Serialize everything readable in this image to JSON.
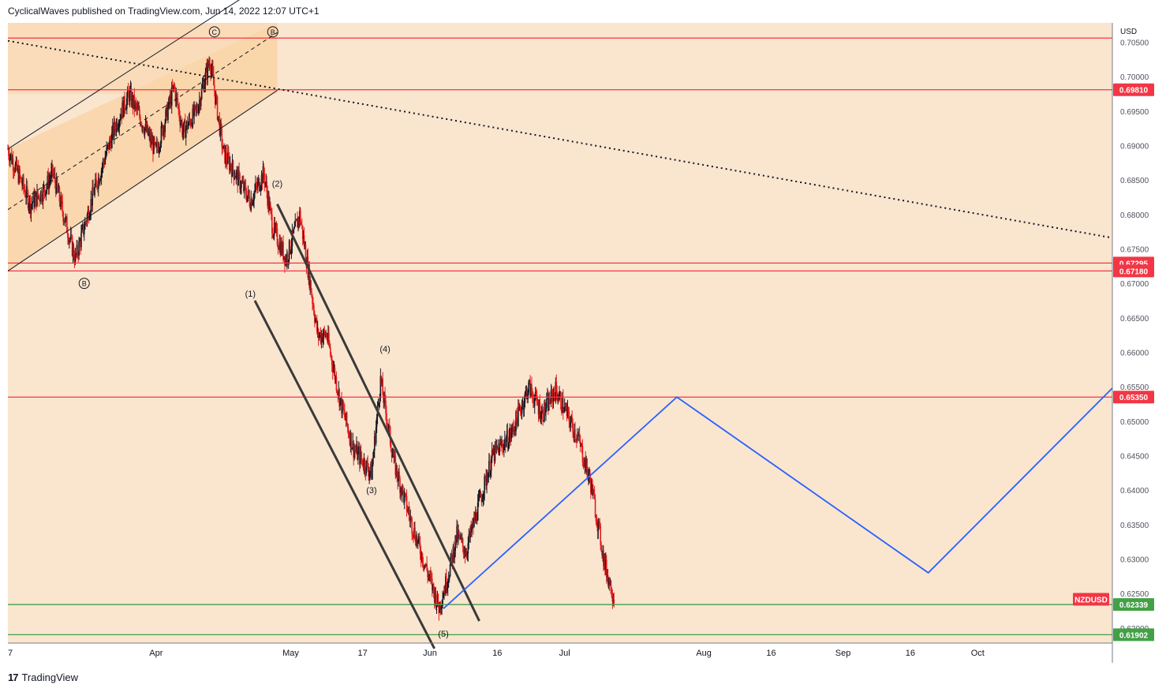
{
  "header": {
    "text": "CyclicalWaves published on TradingView.com, Jun 14, 2022 12:07 UTC+1"
  },
  "footer": {
    "logo_glyph": "17",
    "brand": "TradingView"
  },
  "colors": {
    "background": "#fae5cf",
    "channel_fill": "#fad5aa",
    "bull_candle": "#131722",
    "bear_candle": "#e31c1c",
    "resistance_line": "#f23645",
    "support_line": "#43a047",
    "projection_line": "#2962ff",
    "impulse_channel": "#3a3a3a",
    "symbol_tag": "#f23645"
  },
  "chart_data": {
    "type": "candlestick",
    "symbol": "NZDUSD",
    "currency": "USD",
    "ylim": [
      0.6178,
      0.7078
    ],
    "x_axis": {
      "date_range": [
        "2022-02-27",
        "2022-10-31"
      ],
      "ticks": [
        {
          "label": "7",
          "date": "2022-02-27"
        },
        {
          "label": "Apr",
          "date": "2022-04-01"
        },
        {
          "label": "May",
          "date": "2022-05-01"
        },
        {
          "label": "17",
          "date": "2022-05-17"
        },
        {
          "label": "Jun",
          "date": "2022-06-01"
        },
        {
          "label": "16",
          "date": "2022-06-16"
        },
        {
          "label": "Jul",
          "date": "2022-07-01"
        },
        {
          "label": "Aug",
          "date": "2022-08-01"
        },
        {
          "label": "16",
          "date": "2022-08-16"
        },
        {
          "label": "Sep",
          "date": "2022-09-01"
        },
        {
          "label": "16",
          "date": "2022-09-16"
        },
        {
          "label": "Oct",
          "date": "2022-10-01"
        }
      ]
    },
    "y_ticks": [
      "0.70500",
      "0.70000",
      "0.69500",
      "0.69000",
      "0.68500",
      "0.68000",
      "0.67500",
      "0.67000",
      "0.66500",
      "0.66000",
      "0.65500",
      "0.65000",
      "0.64500",
      "0.64000",
      "0.63500",
      "0.63000",
      "0.62500",
      "0.62000"
    ],
    "price_path": [
      {
        "date": "2022-02-27",
        "price": 0.6895
      },
      {
        "date": "2022-03-04",
        "price": 0.6815
      },
      {
        "date": "2022-03-07",
        "price": 0.6835
      },
      {
        "date": "2022-03-09",
        "price": 0.686
      },
      {
        "date": "2022-03-14",
        "price": 0.6735
      },
      {
        "date": "2022-03-18",
        "price": 0.683
      },
      {
        "date": "2022-03-23",
        "price": 0.693
      },
      {
        "date": "2022-03-26",
        "price": 0.6975
      },
      {
        "date": "2022-04-01",
        "price": 0.689
      },
      {
        "date": "2022-04-05",
        "price": 0.6985
      },
      {
        "date": "2022-04-07",
        "price": 0.692
      },
      {
        "date": "2022-04-10",
        "price": 0.695
      },
      {
        "date": "2022-04-13",
        "price": 0.7025
      },
      {
        "date": "2022-04-16",
        "price": 0.689
      },
      {
        "date": "2022-04-22",
        "price": 0.682
      },
      {
        "date": "2022-04-25",
        "price": 0.686
      },
      {
        "date": "2022-04-27",
        "price": 0.678
      },
      {
        "date": "2022-04-30",
        "price": 0.6735
      },
      {
        "date": "2022-05-03",
        "price": 0.68
      },
      {
        "date": "2022-05-05",
        "price": 0.6715
      },
      {
        "date": "2022-05-07",
        "price": 0.6625
      },
      {
        "date": "2022-05-09",
        "price": 0.6625
      },
      {
        "date": "2022-05-12",
        "price": 0.653
      },
      {
        "date": "2022-05-15",
        "price": 0.646
      },
      {
        "date": "2022-05-19",
        "price": 0.6425
      },
      {
        "date": "2022-05-21",
        "price": 0.656
      },
      {
        "date": "2022-05-24",
        "price": 0.644
      },
      {
        "date": "2022-05-28",
        "price": 0.635
      },
      {
        "date": "2022-05-31",
        "price": 0.629
      },
      {
        "date": "2022-06-03",
        "price": 0.623
      },
      {
        "date": "2022-06-05",
        "price": 0.6275
      },
      {
        "date": "2022-06-07",
        "price": 0.6335
      },
      {
        "date": "2022-06-09",
        "price": 0.631
      },
      {
        "date": "2022-06-13",
        "price": 0.6405
      },
      {
        "date": "2022-06-15",
        "price": 0.645
      },
      {
        "date": "2022-06-19",
        "price": 0.648
      },
      {
        "date": "2022-06-23",
        "price": 0.655
      },
      {
        "date": "2022-06-26",
        "price": 0.651
      },
      {
        "date": "2022-06-29",
        "price": 0.6545
      },
      {
        "date": "2022-07-04",
        "price": 0.6475
      },
      {
        "date": "2022-07-07",
        "price": 0.6405
      },
      {
        "date": "2022-07-10",
        "price": 0.629
      },
      {
        "date": "2022-07-12",
        "price": 0.6245
      }
    ],
    "horizontal_levels": [
      {
        "price": 0.7056,
        "kind": "resistance",
        "label": ""
      },
      {
        "price": 0.6981,
        "kind": "resistance",
        "label": "0.69810"
      },
      {
        "price": 0.67295,
        "kind": "resistance",
        "label": "0.67295"
      },
      {
        "price": 0.6718,
        "kind": "resistance",
        "label": "0.67180"
      },
      {
        "price": 0.6535,
        "kind": "resistance",
        "label": "0.65350"
      },
      {
        "price": 0.62339,
        "kind": "support",
        "label": "0.62339"
      },
      {
        "price": 0.61902,
        "kind": "support",
        "label": "0.61902"
      }
    ],
    "current_symbol_tag": {
      "text": "NZDUSD",
      "price": 0.6237
    },
    "projection_path": [
      {
        "date": "2022-06-04",
        "price": 0.6228
      },
      {
        "date": "2022-07-26",
        "price": 0.6535
      },
      {
        "date": "2022-09-20",
        "price": 0.628
      },
      {
        "date": "2022-10-31",
        "price": 0.6548
      }
    ],
    "trendline_dotted": [
      {
        "date": "2022-02-27",
        "price": 0.7052
      },
      {
        "date": "2022-10-31",
        "price": 0.6766
      }
    ],
    "rising_channel": {
      "lower": [
        {
          "date": "2022-02-27",
          "price": 0.6718
        },
        {
          "date": "2022-04-28",
          "price": 0.698
        }
      ],
      "upper": [
        {
          "date": "2022-02-27",
          "price": 0.6895
        },
        {
          "date": "2022-04-28",
          "price": 0.7147
        }
      ],
      "mid": [
        {
          "date": "2022-02-27",
          "price": 0.6807
        },
        {
          "date": "2022-04-28",
          "price": 0.7064
        }
      ],
      "shade_end_date": "2022-04-28"
    },
    "falling_channel": {
      "upper": [
        {
          "date": "2022-04-28",
          "price": 0.6815
        },
        {
          "date": "2022-06-12",
          "price": 0.621
        }
      ],
      "lower": [
        {
          "date": "2022-04-23",
          "price": 0.6675
        },
        {
          "date": "2022-06-02",
          "price": 0.617
        }
      ]
    },
    "wave_labels": [
      {
        "text": "(1)",
        "date": "2022-04-22",
        "price": 0.6685
      },
      {
        "text": "(2)",
        "date": "2022-04-28",
        "price": 0.6845
      },
      {
        "text": "(3)",
        "date": "2022-05-19",
        "price": 0.64
      },
      {
        "text": "(4)",
        "date": "2022-05-22",
        "price": 0.6605
      },
      {
        "text": "(5)",
        "date": "2022-06-04",
        "price": 0.6192
      },
      {
        "text": "C",
        "date": "2022-04-14",
        "price": 0.7065,
        "circled": true
      },
      {
        "text": "B",
        "date": "2022-04-27",
        "price": 0.7065,
        "circled": true
      },
      {
        "text": "B",
        "date": "2022-03-16",
        "price": 0.67,
        "circled": true
      }
    ]
  }
}
